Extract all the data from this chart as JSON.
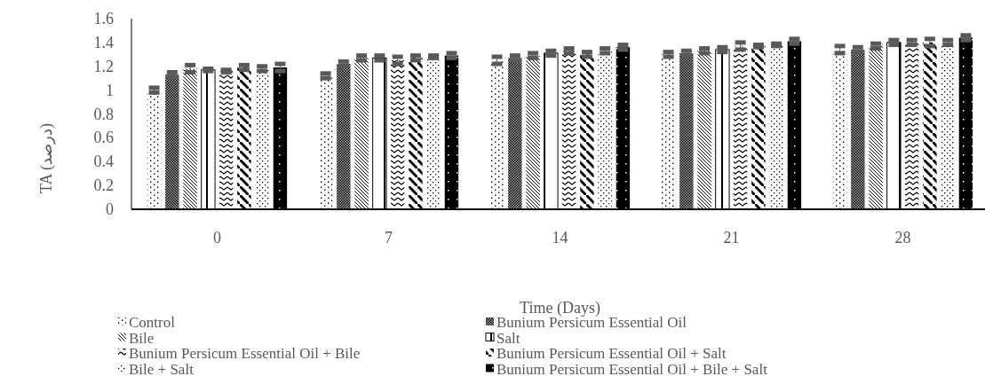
{
  "chart_data": {
    "type": "bar",
    "xlabel": "Time (Days)",
    "ylabel": "TA (درصد)",
    "categories": [
      "0",
      "7",
      "14",
      "21",
      "28"
    ],
    "ylim": [
      0,
      1.6
    ],
    "yticks": [
      0,
      0.2,
      0.4,
      0.6,
      0.8,
      {
        "value": 1,
        "label": "1"
      },
      1.2,
      1.4,
      1.6
    ],
    "grid": false,
    "legend": "bottom",
    "series": [
      {
        "name": "Control",
        "color": "#000000",
        "values": [
          1.0,
          1.12,
          1.25,
          1.3,
          1.34
        ],
        "errors": [
          0.02,
          0.02,
          0.03,
          0.02,
          0.03
        ]
      },
      {
        "name": "Bunium Persicum Essential Oil",
        "color": "#000000",
        "values": [
          1.13,
          1.22,
          1.27,
          1.31,
          1.34
        ],
        "errors": [
          0.02,
          0.02,
          0.02,
          0.02,
          0.02
        ]
      },
      {
        "name": "Bile",
        "color": "#000000",
        "values": [
          1.18,
          1.27,
          1.29,
          1.33,
          1.37
        ],
        "errors": [
          0.03,
          0.02,
          0.02,
          0.02,
          0.02
        ]
      },
      {
        "name": "Salt",
        "color": "#000000",
        "values": [
          1.17,
          1.27,
          1.31,
          1.34,
          1.4
        ],
        "errors": [
          0.01,
          0.02,
          0.02,
          0.02,
          0.02
        ]
      },
      {
        "name": "Bunium Persicum Essential Oil + Bile",
        "color": "#000000",
        "values": [
          1.16,
          1.25,
          1.33,
          1.37,
          1.4
        ],
        "errors": [
          0.01,
          0.03,
          0.02,
          0.03,
          0.02
        ]
      },
      {
        "name": "Bunium Persicum Essential Oil + Salt",
        "color": "#000000",
        "values": [
          1.19,
          1.27,
          1.3,
          1.37,
          1.4
        ],
        "errors": [
          0.02,
          0.02,
          0.02,
          0.01,
          0.03
        ]
      },
      {
        "name": "Bile + Salt",
        "color": "#000000",
        "values": [
          1.18,
          1.28,
          1.33,
          1.38,
          1.4
        ],
        "errors": [
          0.02,
          0.01,
          0.02,
          0.01,
          0.02
        ]
      },
      {
        "name": "Bunium Persicum Essential Oil + Bile + Salt",
        "color": "#000000",
        "values": [
          1.19,
          1.29,
          1.36,
          1.41,
          1.44
        ],
        "errors": [
          0.03,
          0.02,
          0.02,
          0.02,
          0.02
        ]
      }
    ]
  }
}
